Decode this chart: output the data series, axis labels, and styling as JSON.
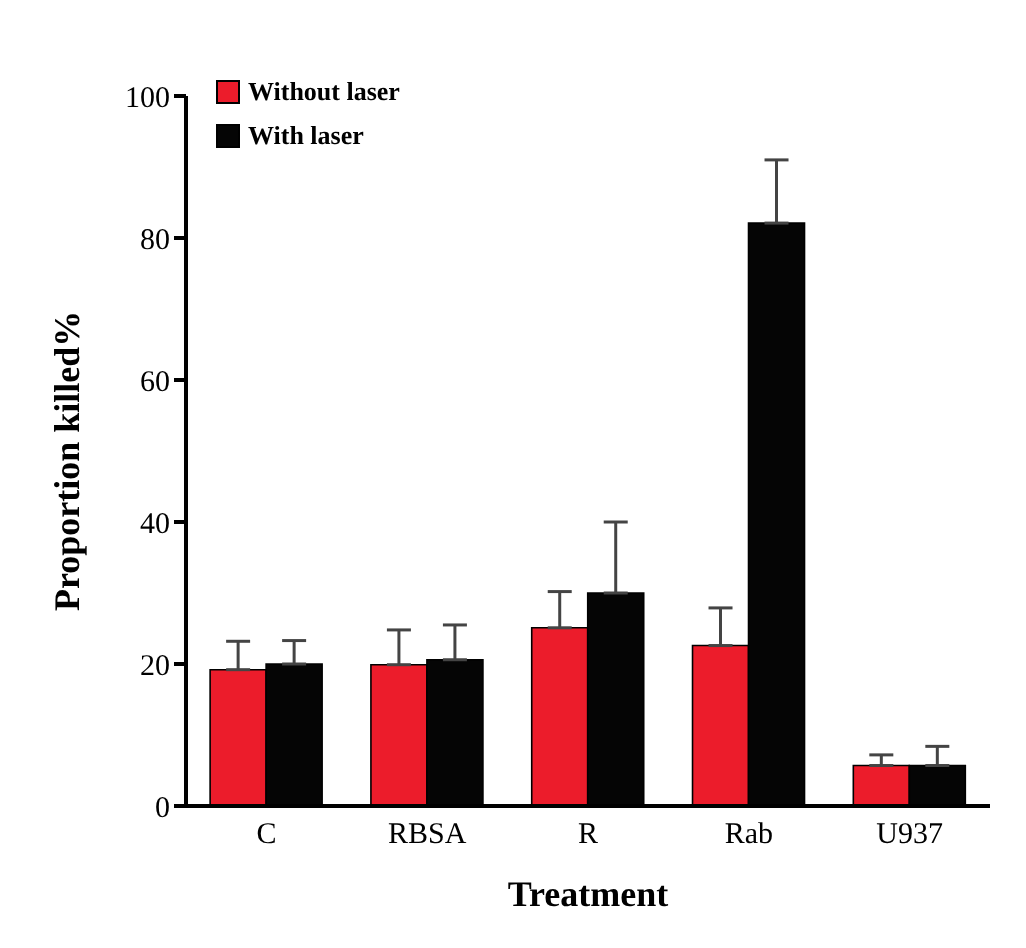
{
  "chart_data": {
    "type": "bar",
    "xlabel": "Treatment",
    "ylabel": "Proportion killed%",
    "categories": [
      "C",
      "RBSA",
      "R",
      "Rab",
      "U937"
    ],
    "series": [
      {
        "name": "Without laser",
        "color": "#ec1c2b",
        "values": [
          19.2,
          19.9,
          25.1,
          22.6,
          5.7
        ],
        "errors": [
          [
            19.2,
            23.2
          ],
          [
            19.9,
            24.8
          ],
          [
            25.1,
            30.2
          ],
          [
            22.6,
            27.9
          ],
          [
            5.7,
            7.2
          ]
        ]
      },
      {
        "name": "With laser",
        "color": "#050505",
        "values": [
          20.0,
          20.6,
          30.0,
          82.1,
          5.7
        ],
        "errors": [
          [
            20.0,
            23.3
          ],
          [
            20.6,
            25.5
          ],
          [
            30.0,
            40.0
          ],
          [
            82.1,
            91.0
          ],
          [
            5.7,
            8.4
          ]
        ]
      }
    ],
    "ylim": [
      0,
      100
    ],
    "yticks": [
      0,
      20,
      40,
      60,
      80,
      100
    ],
    "grid": false,
    "legend": "top left"
  }
}
